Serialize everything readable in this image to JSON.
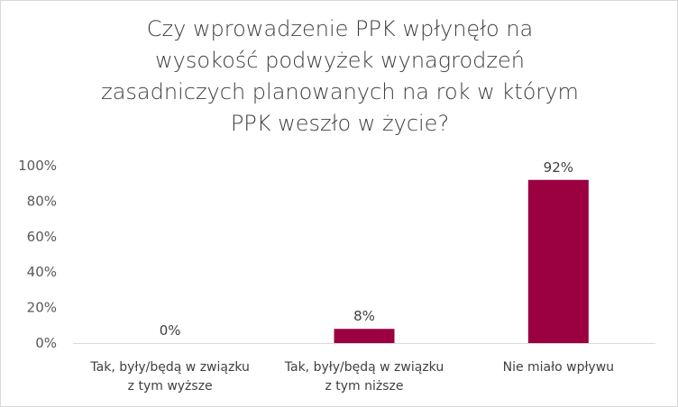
{
  "chart_data": {
    "type": "bar",
    "title": "Czy wprowadzenie PPK wpłynęło na wysokość podwyżek wynagrodzeń zasadniczych planowanych na rok w którym PPK weszło w życie?",
    "title_lines": [
      "Czy wprowadzenie PPK wpłynęło na",
      "wysokość podwyżek wynagrodzeń",
      "zasadniczych planowanych na rok w którym",
      "PPK weszło w życie?"
    ],
    "categories": [
      "Tak, były/będą w związku z tym wyższe",
      "Tak, były/będą w związku z tym niższe",
      "Nie miało wpływu"
    ],
    "category_lines": [
      [
        "Tak, były/będą w związku",
        "z tym wyższe"
      ],
      [
        "Tak, były/będą w związku",
        "z tym niższe"
      ],
      [
        "Nie miało wpływu"
      ]
    ],
    "values": [
      0,
      8,
      92
    ],
    "data_labels": [
      "0%",
      "8%",
      "92%"
    ],
    "ylim": [
      0,
      100
    ],
    "yticks": [
      0,
      20,
      40,
      60,
      80,
      100
    ],
    "ytick_labels": [
      "0%",
      "20%",
      "40%",
      "60%",
      "80%",
      "100%"
    ],
    "grid": false,
    "legend": "none",
    "bar_color": "#9b0041",
    "axis_color": "#d9d9d9"
  }
}
